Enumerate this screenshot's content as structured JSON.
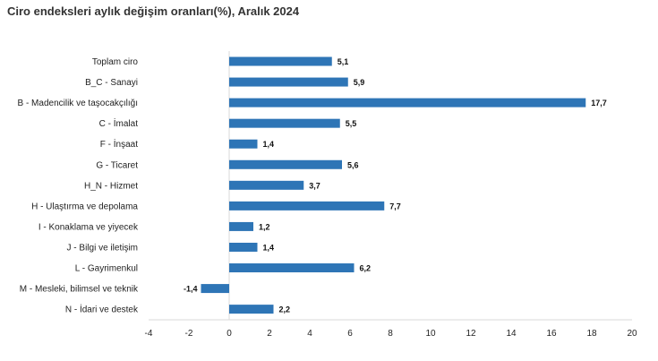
{
  "title": "Ciro endeksleri aylık değişim oranları(%), Aralık 2024",
  "chart_data": {
    "type": "bar",
    "orientation": "horizontal",
    "title": "Ciro endeksleri aylık değişim oranları(%), Aralık 2024",
    "xlabel": "",
    "ylabel": "",
    "xlim": [
      -4,
      20
    ],
    "xticks": [
      -4,
      -2,
      0,
      2,
      4,
      6,
      8,
      10,
      12,
      14,
      16,
      18,
      20
    ],
    "grid": false,
    "legend": "none",
    "bar_color": "#2e75b6",
    "categories": [
      "Toplam ciro",
      "B_C - Sanayi",
      "B - Madencilik ve taşocakçılığı",
      "C - İmalat",
      "F - İnşaat",
      "G - Ticaret",
      "H_N - Hizmet",
      "H - Ulaştırma ve depolama",
      "I - Konaklama ve yiyecek",
      "J - Bilgi ve iletişim",
      "L - Gayrimenkul",
      "M - Mesleki, bilimsel ve teknik",
      "N - İdari ve destek"
    ],
    "values": [
      5.1,
      5.9,
      17.7,
      5.5,
      1.4,
      5.6,
      3.7,
      7.7,
      1.2,
      1.4,
      6.2,
      -1.4,
      2.2
    ],
    "value_labels": [
      "5,1",
      "5,9",
      "17,7",
      "5,5",
      "1,4",
      "5,6",
      "3,7",
      "7,7",
      "1,2",
      "1,4",
      "6,2",
      "-1,4",
      "2,2"
    ]
  }
}
